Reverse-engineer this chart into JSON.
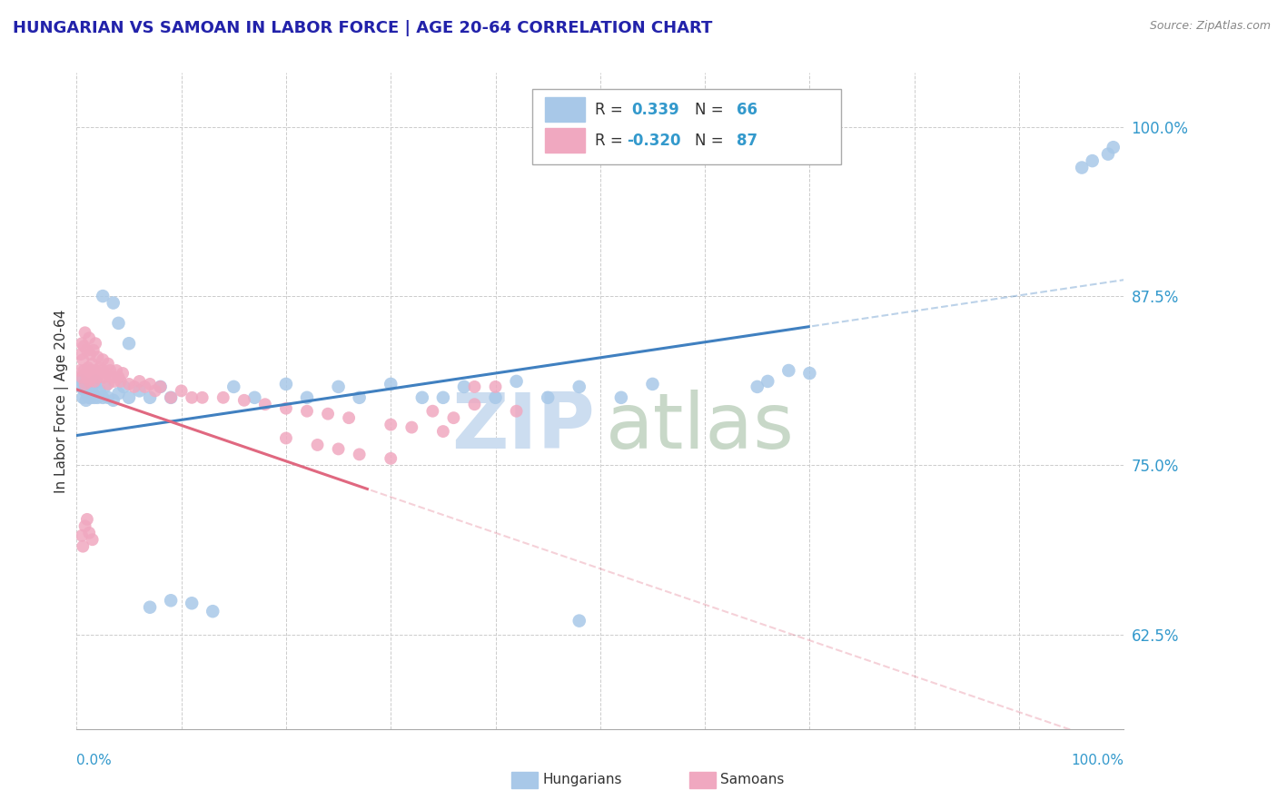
{
  "title": "HUNGARIAN VS SAMOAN IN LABOR FORCE | AGE 20-64 CORRELATION CHART",
  "source_text": "Source: ZipAtlas.com",
  "ylabel": "In Labor Force | Age 20-64",
  "y_ticks": [
    0.625,
    0.75,
    0.875,
    1.0
  ],
  "y_tick_labels": [
    "62.5%",
    "75.0%",
    "87.5%",
    "100.0%"
  ],
  "x_range": [
    0.0,
    1.0
  ],
  "y_range": [
    0.555,
    1.04
  ],
  "blue_color": "#a8c8e8",
  "pink_color": "#f0a8c0",
  "blue_line_color": "#4080c0",
  "pink_line_color": "#e06880",
  "blue_line_solid_end": 0.7,
  "pink_line_solid_end": 0.28,
  "blue_line_intercept": 0.772,
  "blue_line_slope": 0.115,
  "pink_line_intercept": 0.806,
  "pink_line_slope": -0.265,
  "background_color": "#ffffff",
  "grid_color": "#cccccc",
  "title_color": "#2222aa",
  "source_color": "#888888",
  "tick_color": "#3399cc",
  "legend_R_color": "#3399cc",
  "legend_N_color": "#111111",
  "watermark_zip_color": "#ccddf0",
  "watermark_atlas_color": "#c8d8c8"
}
